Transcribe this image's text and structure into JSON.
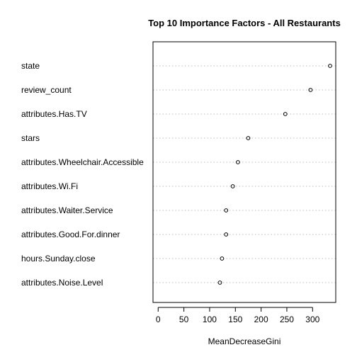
{
  "chart_data": {
    "type": "scatter",
    "title": "Top 10 Importance Factors - All Restaurants",
    "xlabel": "MeanDecreaseGini",
    "ylabel": "",
    "xlim": [
      -10,
      345
    ],
    "xticks": [
      0,
      50,
      100,
      150,
      200,
      250,
      300
    ],
    "grid": "dotted horizontal guide lines",
    "categories": [
      "state",
      "review_count",
      "attributes.Has.TV",
      "stars",
      "attributes.Wheelchair.Accessible",
      "attributes.Wi.Fi",
      "attributes.Waiter.Service",
      "attributes.Good.For.dinner",
      "hours.Sunday.close",
      "attributes.Noise.Level"
    ],
    "values": [
      334,
      296,
      247,
      175,
      155,
      145,
      132,
      132,
      124,
      120
    ]
  }
}
